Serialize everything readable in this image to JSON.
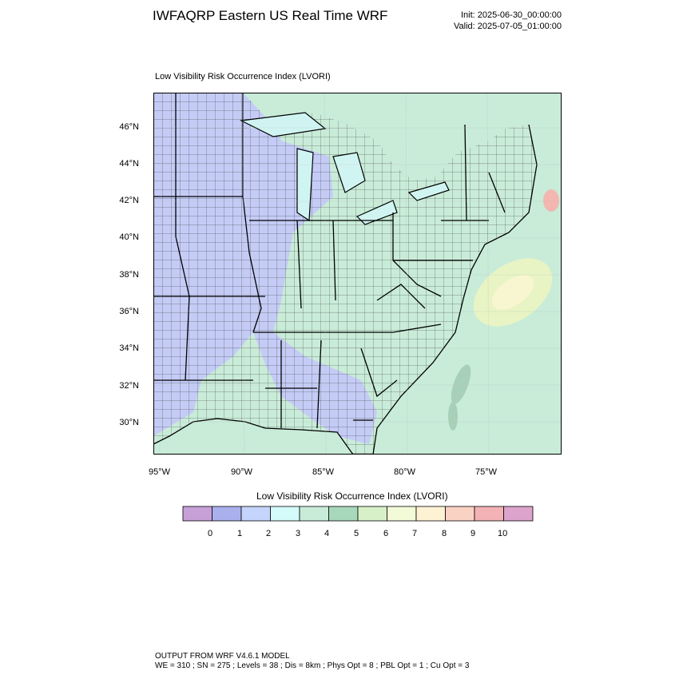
{
  "header": {
    "title": "IWFAQRP Eastern US Real Time WRF",
    "init": "Init: 2025-06-30_00:00:00",
    "valid": "Valid: 2025-07-05_01:00:00"
  },
  "plot": {
    "title": "Low Visibility Risk Occurrence Index   (LVORI)",
    "lat_labels": [
      "46°N",
      "44°N",
      "42°N",
      "40°N",
      "38°N",
      "36°N",
      "34°N",
      "32°N",
      "30°N"
    ],
    "lon_labels": [
      "95°W",
      "90°W",
      "85°W",
      "80°W",
      "75°W"
    ]
  },
  "colorbar": {
    "title": "Low Visibility Risk Occurrence Index  (LVORI)",
    "labels": [
      "0",
      "1",
      "2",
      "3",
      "4",
      "5",
      "6",
      "7",
      "8",
      "9",
      "10"
    ],
    "colors": [
      "#c8a0d8",
      "#aab0ec",
      "#c4d4fa",
      "#d4fafa",
      "#c8ecd8",
      "#a8d8bc",
      "#d8f0c8",
      "#f2fad8",
      "#fdf2d4",
      "#fad2c4",
      "#f2b2b6",
      "#dca4cc"
    ]
  },
  "colors": {
    "land_blue": "#c4ccf6",
    "land_green": "#c9ecd8",
    "ocean": "#c8ecd8",
    "lake": "#d0f4f2"
  },
  "footer": {
    "line1": "OUTPUT FROM WRF V4.6.1 MODEL",
    "line2": "WE = 310 ; SN = 275 ; Levels = 38 ; Dis = 8km ; Phys Opt = 8 ; PBL Opt = 1 ; Cu Opt = 3"
  }
}
